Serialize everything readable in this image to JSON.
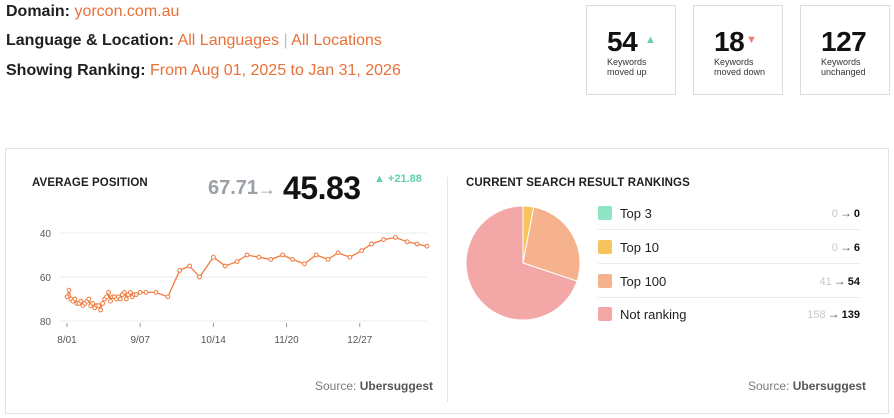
{
  "header": {
    "domain_label": "Domain:",
    "domain_value": "yorcon.com.au",
    "lang_label": "Language & Location:",
    "lang_value": "All Languages",
    "lang_sep": "|",
    "location_value": "All Locations",
    "ranking_label": "Showing Ranking:",
    "ranking_value": "From Aug 01, 2025 to Jan 31, 2026"
  },
  "stats": [
    {
      "value": "54",
      "label_line1": "Keywords",
      "label_line2": "moved up",
      "arrow": "▲",
      "color": "#5fd3a5"
    },
    {
      "value": "18",
      "label_line1": "Keywords",
      "label_line2": "moved down",
      "arrow": "▼",
      "color": "#f07a7a"
    },
    {
      "value": "127",
      "label_line1": "Keywords",
      "label_line2": "unchanged",
      "arrow": "",
      "color": ""
    }
  ],
  "avg_position": {
    "title": "AVERAGE POSITION",
    "old_value": "67.71",
    "arrow": "→",
    "new_value": "45.83",
    "change_icon": "▲",
    "change_value": "+21.88",
    "source_prefix": "Source:",
    "source_name": "Ubersuggest"
  },
  "chart_data": [
    {
      "type": "line",
      "title": "AVERAGE POSITION",
      "x_ticks": [
        "8/01",
        "9/07",
        "10/14",
        "11/20",
        "12/27"
      ],
      "y_ticks": [
        40,
        60,
        80
      ],
      "ylim": [
        80,
        35
      ],
      "y_inverted": true,
      "grid": true,
      "line_color": "#f07a3c",
      "x": [
        0,
        1,
        2,
        3,
        4,
        5,
        6,
        7,
        8,
        9,
        10,
        11,
        12,
        13,
        14,
        15,
        16,
        17,
        18,
        19,
        20,
        21,
        22,
        23,
        24,
        25,
        26,
        27,
        28,
        29,
        30,
        31,
        32,
        33,
        34,
        35,
        37,
        40,
        45,
        51,
        57,
        62,
        67,
        74,
        80,
        86,
        91,
        97,
        103,
        109,
        114,
        120,
        126,
        132,
        137,
        143,
        149,
        154,
        160,
        166,
        172,
        177,
        182
      ],
      "values": [
        69,
        66,
        70,
        71,
        70,
        72,
        72,
        71,
        73,
        72,
        71,
        70,
        73,
        72,
        74,
        73,
        73,
        75,
        72,
        70,
        69,
        67,
        71,
        69,
        69,
        70,
        69,
        70,
        68,
        67,
        70,
        68,
        67,
        69,
        68,
        68,
        67,
        67,
        67,
        69,
        57,
        55,
        60,
        51,
        55,
        53,
        50,
        51,
        52,
        50,
        52,
        54,
        50,
        52,
        49,
        51,
        48,
        45,
        43,
        42,
        44,
        45,
        46
      ]
    },
    {
      "type": "pie",
      "title": "CURRENT SEARCH RESULT RANKINGS",
      "labels": [
        "Top 3",
        "Top 10",
        "Top 100",
        "Not ranking"
      ],
      "values": [
        0,
        6,
        54,
        139
      ],
      "colors": [
        "#8ee5c3",
        "#f7c35c",
        "#f5b28c",
        "#f4a7a7"
      ]
    }
  ],
  "rankings": {
    "title": "CURRENT SEARCH RESULT RANKINGS",
    "items": [
      {
        "label": "Top 3",
        "from": "0",
        "arrow": "→",
        "to": "0",
        "color": "#8ee5c3"
      },
      {
        "label": "Top 10",
        "from": "0",
        "arrow": "→",
        "to": "6",
        "color": "#f7c35c"
      },
      {
        "label": "Top 100",
        "from": "41",
        "arrow": "→",
        "to": "54",
        "color": "#f5b28c"
      },
      {
        "label": "Not ranking",
        "from": "158",
        "arrow": "→",
        "to": "139",
        "color": "#f4a7a7"
      }
    ],
    "source_prefix": "Source:",
    "source_name": "Ubersuggest"
  }
}
